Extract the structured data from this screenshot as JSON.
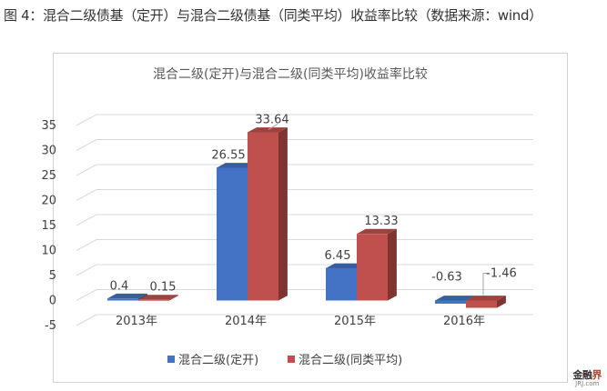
{
  "caption": "图 4：混合二级债基（定开）与混合二级债基（同类平均）收益率比较（数据来源：wind）",
  "watermark": {
    "name_main": "金融",
    "name_accent": "界",
    "url": "JRJ.com"
  },
  "colors": {
    "series1": "#4472c4",
    "series2": "#c0504d",
    "grid": "#d9d9d9",
    "text": "#404040"
  },
  "chart_data": {
    "type": "bar",
    "title": "混合二级(定开)与混合二级(同类平均)收益率比较",
    "categories": [
      "2013年",
      "2014年",
      "2015年",
      "2016年"
    ],
    "series": [
      {
        "name": "混合二级(定开)",
        "values": [
          0.4,
          26.55,
          6.45,
          -0.63
        ]
      },
      {
        "name": "混合二级(同类平均)",
        "values": [
          0.15,
          33.64,
          13.33,
          -1.46
        ]
      }
    ],
    "value_labels": [
      [
        "0.4",
        "26.55",
        "6.45",
        "-0.63"
      ],
      [
        "0.15",
        "33.64",
        "13.33",
        "-1.46"
      ]
    ],
    "ylim": [
      -5,
      35
    ],
    "yticks": [
      -5,
      0,
      5,
      10,
      15,
      20,
      25,
      30,
      35
    ],
    "grid": true,
    "legend": "bottom",
    "style": "3d-clustered-column"
  }
}
